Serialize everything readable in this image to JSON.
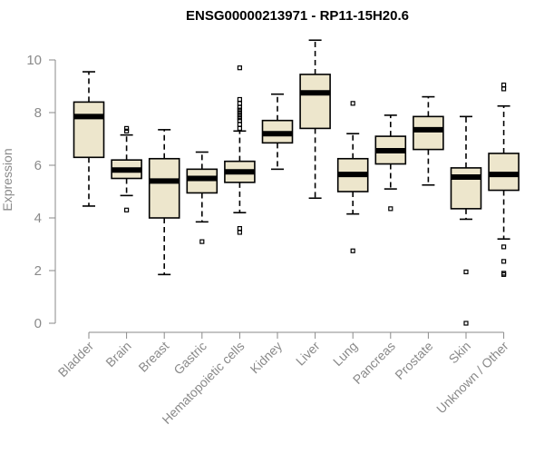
{
  "chart_data": {
    "type": "boxplot",
    "title": "ENSG00000213971 - RP11-15H20.6",
    "xlabel": "",
    "ylabel": "Expression",
    "ylim": [
      0,
      10.8
    ],
    "yticks": [
      0,
      2,
      4,
      6,
      8,
      10
    ],
    "grid": false,
    "box_fill": "#ede6cc",
    "stroke_color": "#000000",
    "axis_color": "#8a8a8a",
    "categories": [
      "Bladder",
      "Brain",
      "Breast",
      "Gastric",
      "Hematopoietic cells",
      "Kidney",
      "Liver",
      "Lung",
      "Pancreas",
      "Prostate",
      "Skin",
      "Unknown / Other"
    ],
    "boxes": [
      {
        "min": 4.45,
        "q1": 6.3,
        "median": 7.85,
        "q3": 8.4,
        "max": 9.55,
        "outliers": []
      },
      {
        "min": 4.85,
        "q1": 5.5,
        "median": 5.82,
        "q3": 6.2,
        "max": 7.15,
        "outliers": [
          4.3,
          7.3,
          7.4
        ]
      },
      {
        "min": 1.85,
        "q1": 4.0,
        "median": 5.4,
        "q3": 6.25,
        "max": 7.35,
        "outliers": []
      },
      {
        "min": 3.85,
        "q1": 4.95,
        "median": 5.5,
        "q3": 5.85,
        "max": 6.5,
        "outliers": [
          3.1
        ]
      },
      {
        "min": 4.2,
        "q1": 5.35,
        "median": 5.75,
        "q3": 6.15,
        "max": 7.3,
        "outliers": [
          3.45,
          3.6,
          7.4,
          7.55,
          7.7,
          7.8,
          7.9,
          8.0,
          8.1,
          8.2,
          8.35,
          8.5,
          9.7
        ]
      },
      {
        "min": 5.85,
        "q1": 6.85,
        "median": 7.2,
        "q3": 7.7,
        "max": 8.7,
        "outliers": []
      },
      {
        "min": 4.75,
        "q1": 7.4,
        "median": 8.75,
        "q3": 9.45,
        "max": 10.75,
        "outliers": []
      },
      {
        "min": 4.15,
        "q1": 5.0,
        "median": 5.65,
        "q3": 6.25,
        "max": 7.2,
        "outliers": [
          2.75,
          8.35
        ]
      },
      {
        "min": 5.1,
        "q1": 6.05,
        "median": 6.55,
        "q3": 7.1,
        "max": 7.9,
        "outliers": [
          4.35
        ]
      },
      {
        "min": 5.25,
        "q1": 6.6,
        "median": 7.35,
        "q3": 7.85,
        "max": 8.6,
        "outliers": []
      },
      {
        "min": 3.95,
        "q1": 4.35,
        "median": 5.55,
        "q3": 5.9,
        "max": 7.85,
        "outliers": [
          0.0,
          1.95
        ]
      },
      {
        "min": 3.2,
        "q1": 5.05,
        "median": 5.65,
        "q3": 6.45,
        "max": 8.25,
        "outliers": [
          1.85,
          1.9,
          2.35,
          2.9,
          8.9,
          9.05
        ]
      }
    ]
  }
}
